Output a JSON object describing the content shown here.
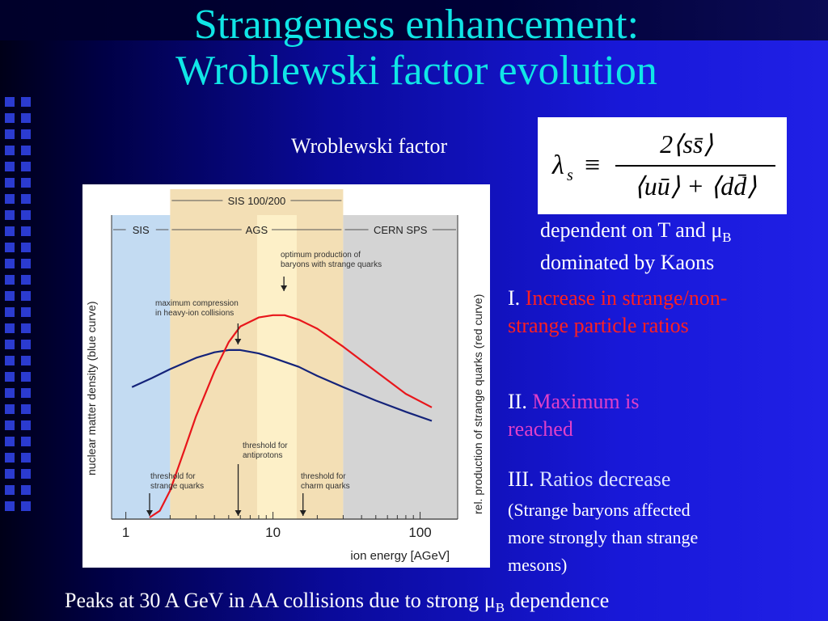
{
  "title_line1": "Strangeness enhancement:",
  "title_line2": "Wroblewski factor evolution",
  "wroblewski_label": "Wroblewski factor",
  "formula": {
    "lhs": "λ",
    "lhs_sub": "s",
    "equiv": "≡",
    "numerator": "2⟨ss̄⟩",
    "denominator": "⟨uū⟩ + ⟨dd̄⟩"
  },
  "dependent": {
    "text": "dependent on T and ",
    "mu": "μ",
    "sub": "B"
  },
  "dominated": "dominated by Kaons",
  "point1": {
    "roman": "I. ",
    "text": "Increase in strange/non-strange particle ratios"
  },
  "point2": {
    "roman": "II. ",
    "text": "Maximum is reached"
  },
  "point3": {
    "roman": "III. ",
    "text": "Ratios decrease"
  },
  "point3_note": "(Strange baryons affected more strongly than strange mesons)",
  "footer": {
    "text_before": "Peaks at 30 A GeV in AA collisions due to strong ",
    "mu": "μ",
    "sub": "B",
    "text_after": " dependence"
  },
  "colors": {
    "title": "#10e6e6",
    "red_text": "#ff2020",
    "magenta_text": "#e040c8",
    "red_curve": "#e8161b",
    "blue_curve": "#14237a",
    "sis_region": "#c3dbf2",
    "ags_region": "#f3dfb5",
    "sps_region": "#d4d4d4",
    "overlap_region": "#fdf0c8"
  },
  "chart_data": {
    "type": "line",
    "xscale": "log",
    "xlim": [
      0.8,
      180
    ],
    "x_ticks": [
      1,
      10,
      100
    ],
    "x_tick_labels": [
      "1",
      "10",
      "100"
    ],
    "xlabel": "ion energy [AGeV]",
    "ylabel_left": "nuclear matter density  (blue curve)",
    "ylabel_right": "rel. production of strange quarks (red curve)",
    "regions": [
      {
        "label": "SIS",
        "x_from": 0.8,
        "x_to": 2,
        "color": "#c3dbf2"
      },
      {
        "label": "AGS",
        "x_from": 2,
        "x_to": 30,
        "color": "#f3dfb5"
      },
      {
        "label": "CERN SPS",
        "x_from": 30,
        "x_to": 180,
        "color": "#d4d4d4"
      }
    ],
    "band": {
      "label": "SIS 100/200",
      "x_from": 2,
      "x_to": 30
    },
    "series": [
      {
        "name": "blue curve",
        "color": "#14237a",
        "x": [
          1.1,
          1.5,
          2,
          3,
          4,
          5,
          6,
          8,
          10,
          15,
          20,
          30,
          50,
          80,
          120
        ],
        "y": [
          0.58,
          0.62,
          0.66,
          0.71,
          0.735,
          0.745,
          0.745,
          0.73,
          0.71,
          0.67,
          0.63,
          0.58,
          0.52,
          0.47,
          0.43
        ]
      },
      {
        "name": "red curve",
        "color": "#e8161b",
        "x": [
          1.45,
          1.7,
          2,
          2.5,
          3,
          4,
          5,
          6,
          8,
          10,
          12,
          15,
          20,
          30,
          50,
          80,
          120
        ],
        "y": [
          0.0,
          0.03,
          0.12,
          0.3,
          0.45,
          0.65,
          0.78,
          0.85,
          0.89,
          0.9,
          0.9,
          0.88,
          0.84,
          0.76,
          0.65,
          0.55,
          0.49
        ]
      }
    ],
    "ylim": [
      0,
      1
    ],
    "annotations": [
      {
        "text": "optimum production of baryons with strange quarks",
        "x": 11
      },
      {
        "text": "maximum compression in heavy-ion collisions",
        "x": 5.5
      },
      {
        "text": "threshold for antiprotons",
        "x": 5.8
      },
      {
        "text": "threshold for strange quarks",
        "x": 1.45
      },
      {
        "text": "threshold for charm quarks",
        "x": 16
      }
    ]
  }
}
